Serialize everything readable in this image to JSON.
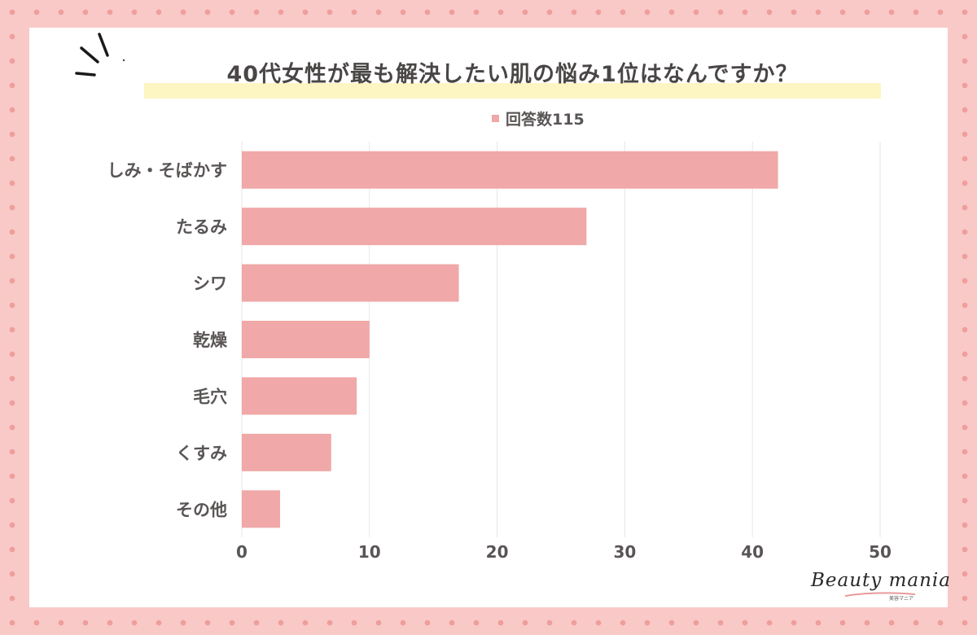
{
  "title": "40代女性が最も解決したい肌の悩み1位はなんですか？",
  "legend_label": "回答数115",
  "logo": {
    "text": "Beauty mania",
    "sub": "美容マニア"
  },
  "colors": {
    "bar": "#f0a8a8",
    "background": "#f9c9c7",
    "highlight": "#fdf5c2",
    "text": "#5a5555"
  },
  "chart_data": {
    "type": "bar",
    "orientation": "horizontal",
    "categories": [
      "しみ・そばかす",
      "たるみ",
      "シワ",
      "乾燥",
      "毛穴",
      "くすみ",
      "その他"
    ],
    "series": [
      {
        "name": "回答数115",
        "values": [
          42,
          27,
          17,
          10,
          9,
          7,
          3
        ]
      }
    ],
    "xlim": [
      0,
      50
    ],
    "xticks": [
      0,
      10,
      20,
      30,
      40,
      50
    ],
    "grid": true,
    "legend_position": "top"
  }
}
